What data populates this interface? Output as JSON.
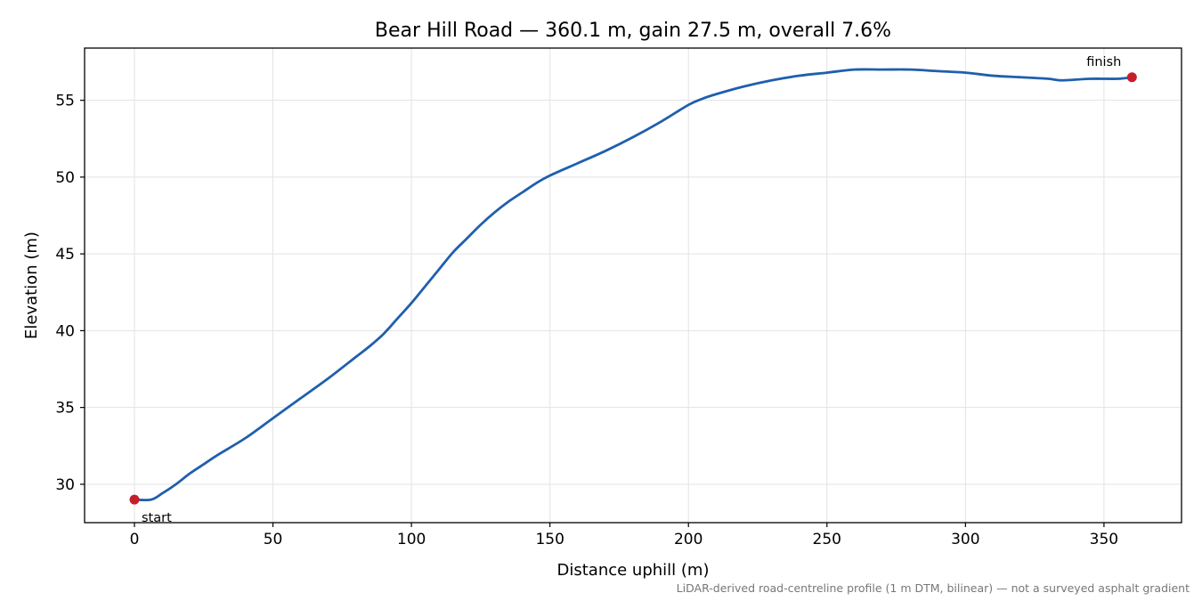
{
  "chart_data": {
    "type": "line",
    "title": "Bear Hill Road — 360.1 m, gain 27.5 m, overall 7.6%",
    "xlabel": "Distance uphill (m)",
    "ylabel": "Elevation (m)",
    "xlim": [
      -18,
      378
    ],
    "ylim": [
      27.5,
      58.4
    ],
    "xticks": [
      0,
      50,
      100,
      150,
      200,
      250,
      300,
      350
    ],
    "yticks": [
      30,
      35,
      40,
      45,
      50,
      55
    ],
    "grid": true,
    "series": [
      {
        "color": "#1f5fad",
        "x": [
          0,
          6,
          10,
          15,
          20,
          25,
          30,
          40,
          50,
          60,
          70,
          80,
          85,
          90,
          95,
          100,
          105,
          110,
          115,
          120,
          125,
          130,
          135,
          140,
          145,
          150,
          160,
          170,
          180,
          190,
          200,
          205,
          210,
          220,
          230,
          240,
          250,
          260,
          270,
          280,
          290,
          300,
          310,
          320,
          330,
          335,
          345,
          355,
          360.1
        ],
        "y": [
          29.0,
          29.0,
          29.4,
          30.0,
          30.7,
          31.3,
          31.9,
          33.0,
          34.3,
          35.6,
          36.9,
          38.3,
          39.0,
          39.8,
          40.8,
          41.8,
          42.9,
          44.0,
          45.1,
          46.0,
          46.9,
          47.7,
          48.4,
          49.0,
          49.6,
          50.1,
          50.9,
          51.7,
          52.6,
          53.6,
          54.7,
          55.1,
          55.4,
          55.9,
          56.3,
          56.6,
          56.8,
          57.0,
          57.0,
          57.0,
          56.9,
          56.8,
          56.6,
          56.5,
          56.4,
          56.3,
          56.4,
          56.4,
          56.5
        ]
      }
    ],
    "markers": [
      {
        "label": "start",
        "x": 0,
        "y": 29.0,
        "color": "#c41e2a"
      },
      {
        "label": "finish",
        "x": 360.1,
        "y": 56.5,
        "color": "#c41e2a"
      }
    ],
    "caption": "LiDAR-derived road-centreline profile (1 m DTM, bilinear) — not a surveyed asphalt gradient"
  }
}
